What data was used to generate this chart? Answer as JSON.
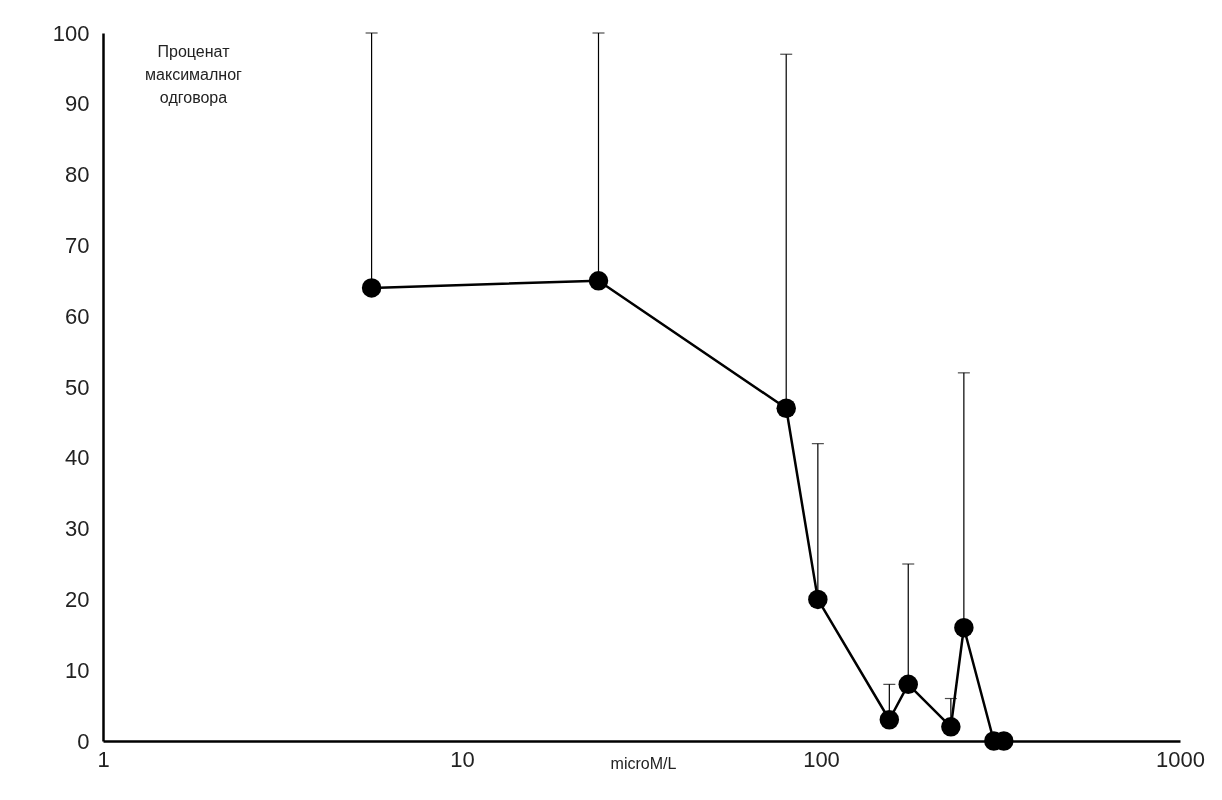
{
  "chart_data": {
    "type": "line",
    "xlabel": "microM/L",
    "ylabel": "Проценат максималног одговора",
    "x": [
      5.6,
      24,
      80,
      98,
      155,
      175,
      230,
      250,
      303,
      323
    ],
    "series": [
      {
        "color": "#000000",
        "values": [
          64,
          65,
          47,
          20,
          3,
          8,
          2,
          16,
          0,
          0
        ],
        "errors": [
          [
            64,
            100
          ],
          [
            65,
            100
          ],
          [
            47,
            97
          ],
          [
            20,
            42
          ],
          [
            3,
            8
          ],
          [
            8,
            25
          ],
          [
            2,
            6
          ],
          [
            16,
            52
          ],
          null,
          null
        ]
      }
    ],
    "xlim": [
      1,
      1000
    ],
    "xticks": [
      1,
      10,
      100,
      1000
    ],
    "ylim": [
      0,
      100
    ],
    "yticks": [
      0,
      10,
      20,
      30,
      40,
      50,
      60,
      70,
      80,
      90,
      100
    ],
    "log": "x",
    "grid": false,
    "marker": "circle",
    "line_style": "solid"
  }
}
